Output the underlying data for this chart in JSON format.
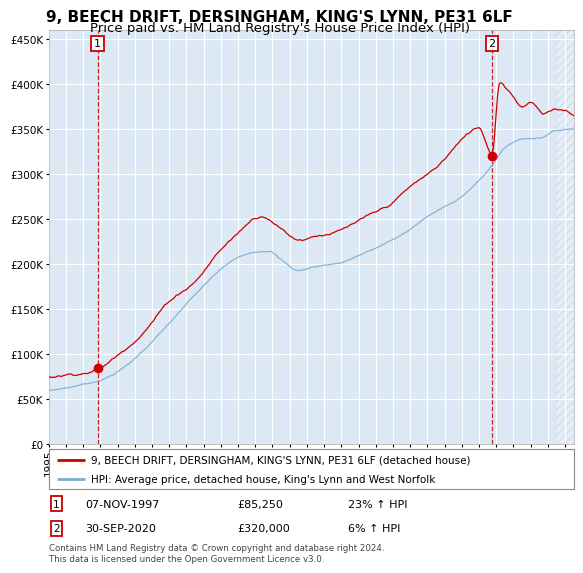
{
  "title": "9, BEECH DRIFT, DERSINGHAM, KING'S LYNN, PE31 6LF",
  "subtitle": "Price paid vs. HM Land Registry's House Price Index (HPI)",
  "red_label": "9, BEECH DRIFT, DERSINGHAM, KING'S LYNN, PE31 6LF (detached house)",
  "blue_label": "HPI: Average price, detached house, King's Lynn and West Norfolk",
  "annotation1_date": "07-NOV-1997",
  "annotation1_price": "£85,250",
  "annotation1_hpi": "23% ↑ HPI",
  "annotation2_date": "30-SEP-2020",
  "annotation2_price": "£320,000",
  "annotation2_hpi": "6% ↑ HPI",
  "marker1_year": 1997.85,
  "marker1_value": 85250,
  "marker2_year": 2020.75,
  "marker2_value": 320000,
  "vline1_year": 1997.85,
  "vline2_year": 2020.75,
  "footer": "Contains HM Land Registry data © Crown copyright and database right 2024.\nThis data is licensed under the Open Government Licence v3.0.",
  "outer_bg_color": "#ffffff",
  "plot_bg_color": "#dce9f5",
  "ylim": [
    0,
    460000
  ],
  "xlim_start": 1995.0,
  "xlim_end": 2025.5,
  "red_color": "#cc0000",
  "blue_color": "#7bafd4",
  "vline_color": "#cc0000",
  "title_fontsize": 11,
  "subtitle_fontsize": 9.5,
  "tick_fontsize": 7.5
}
